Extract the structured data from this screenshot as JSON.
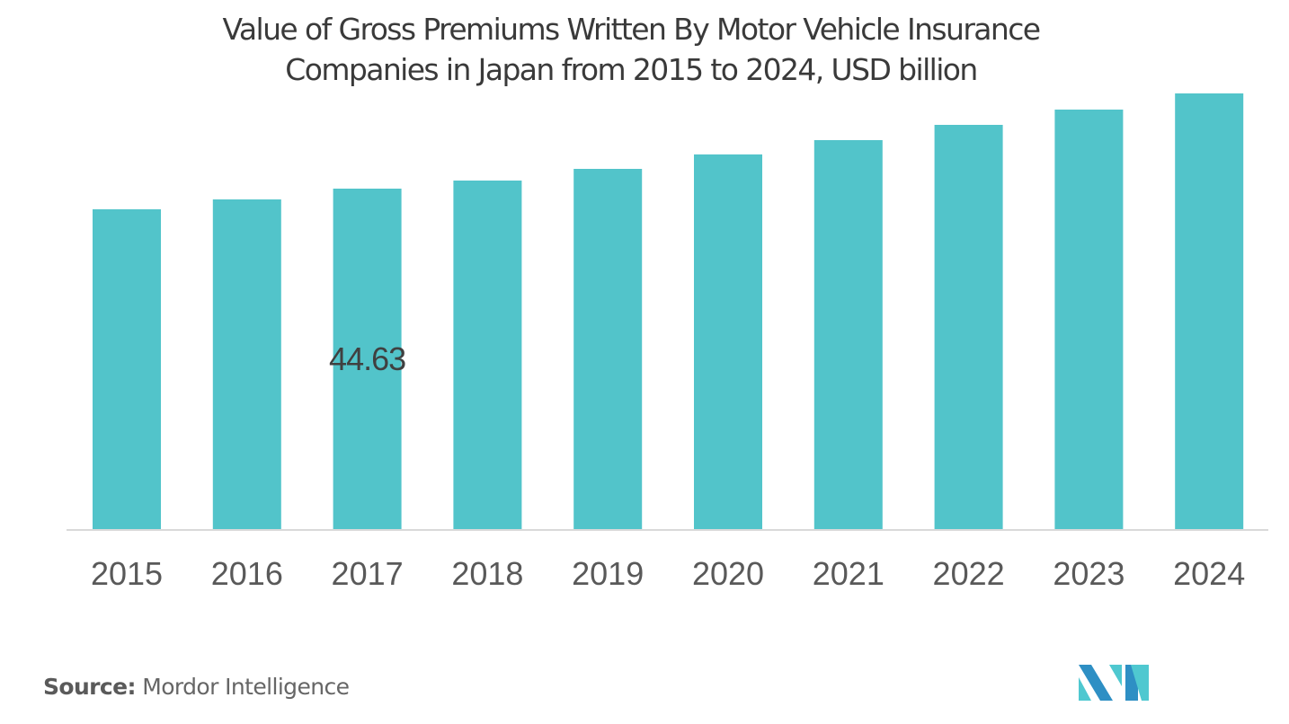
{
  "chart_data": {
    "type": "bar",
    "title": "Value of Gross Premiums Written By Motor Vehicle Insurance Companies in Japan from 2015 to 2024, USD billion",
    "title_lines": [
      "Value of Gross Premiums Written By Motor Vehicle Insurance",
      "Companies in Japan from 2015 to 2024, USD billion"
    ],
    "xlabel": "",
    "ylabel": "",
    "categories": [
      "2015",
      "2016",
      "2017",
      "2018",
      "2019",
      "2020",
      "2021",
      "2022",
      "2023",
      "2024"
    ],
    "values": [
      41.92,
      43.22,
      44.63,
      45.69,
      47.22,
      49.11,
      50.99,
      52.99,
      54.99,
      57.11
    ],
    "data_labels": [
      {
        "category": "2017",
        "text": "44.63"
      }
    ],
    "ylim": [
      0,
      57.11
    ],
    "grid": false,
    "legend": "none",
    "bar_color": "#52C4CA",
    "axis_color": "#D9D9D9"
  },
  "footer": {
    "source_label": "Source:",
    "source_value": "Mordor Intelligence"
  },
  "logo": {
    "icon": "mordor-intelligence-logo",
    "colors": [
      "#2E8FC4",
      "#4FC8D0"
    ]
  }
}
